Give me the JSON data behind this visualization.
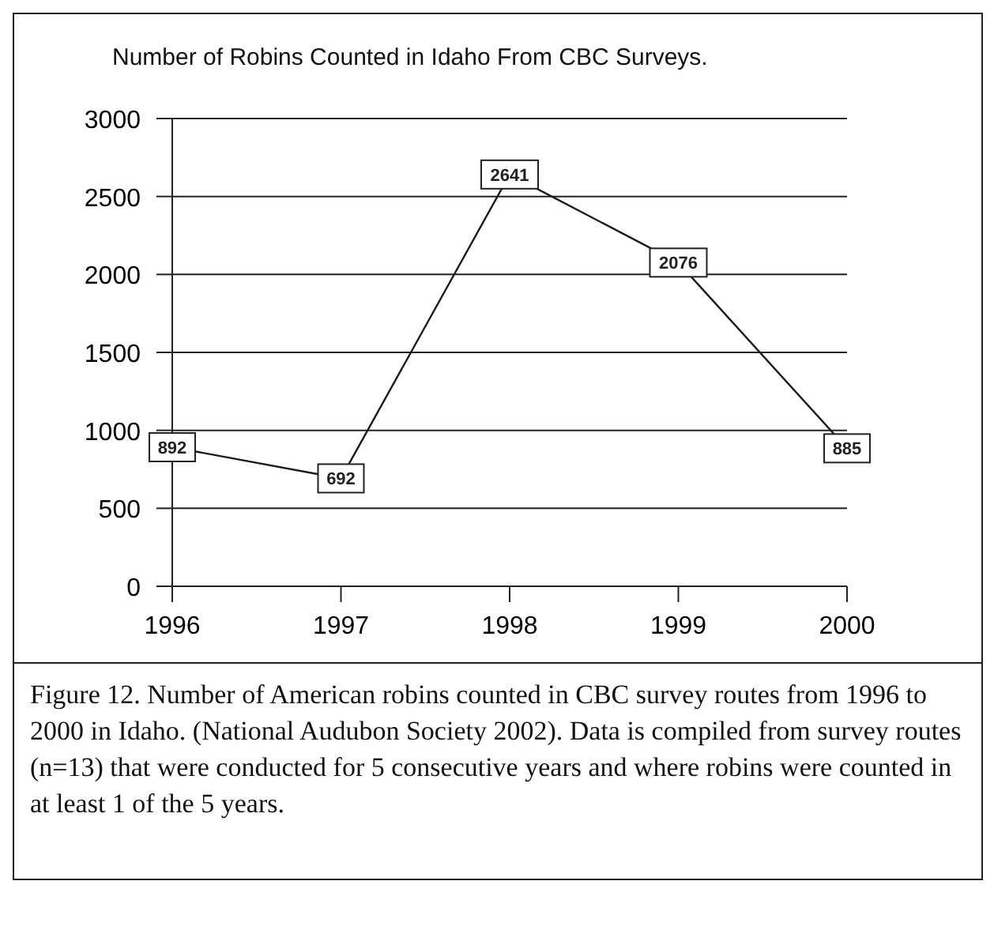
{
  "chart_data": {
    "type": "line",
    "title": "Number of Robins Counted in Idaho From CBC Surveys.",
    "x": [
      1996,
      1997,
      1998,
      1999,
      2000
    ],
    "series": [
      {
        "color": "#1a1a1a",
        "values": [
          892,
          692,
          2641,
          2076,
          885
        ]
      }
    ],
    "xlim": [
      1996,
      2000
    ],
    "xticks": [
      1996,
      1997,
      1998,
      1999,
      2000
    ],
    "ylim": [
      0,
      3000
    ],
    "yticks": [
      0,
      500,
      1000,
      1500,
      2000,
      2500,
      3000
    ],
    "grid": "y",
    "marker": "square",
    "line_style": "solid",
    "data_labels": true,
    "annotations": [
      "Figure 12.  Number of American robins counted in CBC survey routes from 1996 to 2000 in Idaho.  (National Audubon Society 2002).  Data is compiled from survey routes (n=13) that were conducted for 5 consecutive years and where robins were counted in at least 1 of the 5 years."
    ]
  }
}
